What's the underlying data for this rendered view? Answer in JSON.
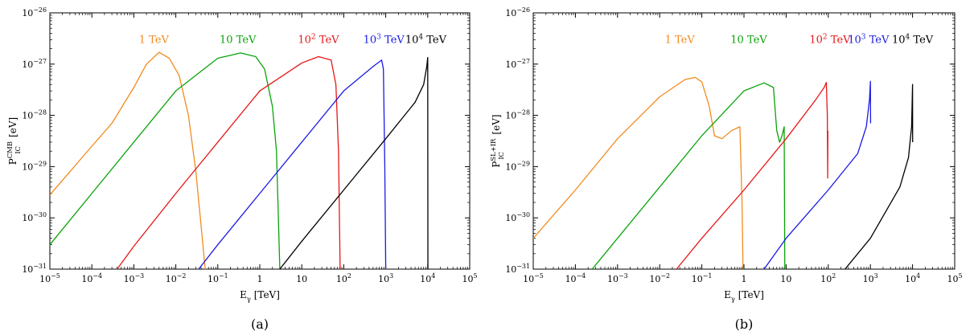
{
  "chart_data": [
    {
      "type": "line",
      "panel_label": "(a)",
      "xlabel": "E_γ [TeV]",
      "ylabel": "P_IC^CMB [eV]",
      "x_scale": "log",
      "y_scale": "log",
      "xlim": [
        1e-05,
        100000.0
      ],
      "ylim": [
        1e-31,
        1e-26
      ],
      "x_ticks": [
        "10^-5",
        "10^-4",
        "10^-3",
        "10^-2",
        "10^-1",
        "1",
        "10",
        "10^2",
        "10^3",
        "10^4",
        "10^5"
      ],
      "y_ticks": [
        "10^-31",
        "10^-30",
        "10^-29",
        "10^-28",
        "10^-27",
        "10^-26"
      ],
      "legend_placement": "top, labels above curve peaks",
      "series": [
        {
          "name": "1 TeV",
          "color": "#f28a1e",
          "label_at": [
            0.003,
            2.6e-27
          ],
          "points": [
            [
              1e-05,
              2.8e-30
            ],
            [
              0.0001,
              2.5e-29
            ],
            [
              0.0003,
              7e-29
            ],
            [
              0.001,
              3.5e-28
            ],
            [
              0.002,
              1e-27
            ],
            [
              0.004,
              1.7e-27
            ],
            [
              0.007,
              1.3e-27
            ],
            [
              0.012,
              6e-28
            ],
            [
              0.02,
              1e-28
            ],
            [
              0.03,
              8e-30
            ],
            [
              0.04,
              7e-31
            ],
            [
              0.05,
              1e-31
            ]
          ]
        },
        {
          "name": "10 TeV",
          "color": "#0aa30a",
          "label_at": [
            0.3,
            2.6e-27
          ],
          "points": [
            [
              1e-05,
              3e-31
            ],
            [
              0.0001,
              3e-30
            ],
            [
              0.001,
              3e-29
            ],
            [
              0.01,
              3e-28
            ],
            [
              0.1,
              1.3e-27
            ],
            [
              0.35,
              1.65e-27
            ],
            [
              0.8,
              1.4e-27
            ],
            [
              1.3,
              8e-28
            ],
            [
              2,
              1.5e-28
            ],
            [
              2.5,
              2e-29
            ],
            [
              3,
              1e-31
            ]
          ]
        },
        {
          "name": "10^2 TeV",
          "color": "#e61717",
          "label_at": [
            25,
            2.6e-27
          ],
          "points": [
            [
              0.0004,
              1e-31
            ],
            [
              0.001,
              2.8e-31
            ],
            [
              0.01,
              3e-30
            ],
            [
              0.1,
              3e-29
            ],
            [
              1,
              3e-28
            ],
            [
              10,
              1.05e-27
            ],
            [
              25,
              1.4e-27
            ],
            [
              50,
              1.2e-27
            ],
            [
              65,
              4e-28
            ],
            [
              75,
              2e-29
            ],
            [
              82,
              1e-31
            ]
          ]
        },
        {
          "name": "10^3 TeV",
          "color": "#1a1ae6",
          "label_at": [
            900,
            2.6e-27
          ],
          "points": [
            [
              0.035,
              1e-31
            ],
            [
              0.1,
              3e-31
            ],
            [
              1,
              3e-30
            ],
            [
              10,
              3e-29
            ],
            [
              100,
              3e-28
            ],
            [
              500,
              9e-28
            ],
            [
              800,
              1.2e-27
            ],
            [
              880,
              8e-28
            ],
            [
              950,
              1e-29
            ],
            [
              1000,
              1e-31
            ]
          ]
        },
        {
          "name": "10^4 TeV",
          "color": "#000000",
          "label_at": [
            9000,
            2.6e-27
          ],
          "points": [
            [
              3,
              1e-31
            ],
            [
              10,
              3.5e-31
            ],
            [
              100,
              3.5e-30
            ],
            [
              1000,
              3.5e-29
            ],
            [
              5000,
              1.8e-28
            ],
            [
              8000,
              4e-28
            ],
            [
              9500,
              9e-28
            ],
            [
              10000,
              1.35e-27
            ],
            [
              10100,
              1e-31
            ]
          ]
        }
      ]
    },
    {
      "type": "line",
      "panel_label": "(b)",
      "xlabel": "E_γ [TeV]",
      "ylabel": "P_IC^SL+IR [eV]",
      "x_scale": "log",
      "y_scale": "log",
      "xlim": [
        1e-05,
        100000.0
      ],
      "ylim": [
        1e-31,
        1e-26
      ],
      "x_ticks": [
        "10^-5",
        "10^-4",
        "10^-3",
        "10^-2",
        "10^-1",
        "1",
        "10",
        "10^2",
        "10^3",
        "10^4",
        "10^5"
      ],
      "y_ticks": [
        "10^-31",
        "10^-30",
        "10^-29",
        "10^-28",
        "10^-27",
        "10^-26"
      ],
      "legend_placement": "top-right",
      "series": [
        {
          "name": "1 TeV",
          "color": "#f28a1e",
          "label_at": [
            0.03,
            2.6e-27
          ],
          "points": [
            [
              1e-05,
              4e-31
            ],
            [
              0.0001,
              3.5e-30
            ],
            [
              0.001,
              3.5e-29
            ],
            [
              0.01,
              2.3e-28
            ],
            [
              0.04,
              5e-28
            ],
            [
              0.07,
              5.5e-28
            ],
            [
              0.1,
              4.5e-28
            ],
            [
              0.15,
              1.5e-28
            ],
            [
              0.2,
              4e-29
            ],
            [
              0.3,
              3.5e-29
            ],
            [
              0.5,
              5e-29
            ],
            [
              0.8,
              6e-29
            ],
            [
              0.9,
              2e-30
            ],
            [
              0.95,
              1e-31
            ]
          ]
        },
        {
          "name": "10 TeV",
          "color": "#0aa30a",
          "label_at": [
            1.3,
            2.6e-27
          ],
          "points": [
            [
              0.00025,
              1e-31
            ],
            [
              0.001,
              4e-31
            ],
            [
              0.01,
              4e-30
            ],
            [
              0.1,
              4e-29
            ],
            [
              1,
              3e-28
            ],
            [
              3,
              4.3e-28
            ],
            [
              5,
              3.5e-28
            ],
            [
              6,
              5e-29
            ],
            [
              7,
              3e-29
            ],
            [
              8,
              4e-29
            ],
            [
              9,
              6e-29
            ],
            [
              9.3,
              1e-31
            ]
          ]
        },
        {
          "name": "10^2 TeV",
          "color": "#e61717",
          "label_at": [
            110,
            2.6e-27
          ],
          "points": [
            [
              0.025,
              1e-31
            ],
            [
              0.1,
              4e-31
            ],
            [
              1,
              3.5e-30
            ],
            [
              10,
              3.5e-29
            ],
            [
              50,
              2e-28
            ],
            [
              80,
              3.5e-28
            ],
            [
              90,
              4.4e-28
            ],
            [
              95,
              1e-28
            ],
            [
              97,
              6e-30
            ],
            [
              98,
              5e-29
            ]
          ]
        },
        {
          "name": "10^3 TeV",
          "color": "#1a1ae6",
          "label_at": [
            900,
            2.6e-27
          ],
          "points": [
            [
              3,
              1e-31
            ],
            [
              10,
              4e-31
            ],
            [
              100,
              3.5e-30
            ],
            [
              500,
              1.8e-29
            ],
            [
              800,
              6e-29
            ],
            [
              950,
              2e-28
            ],
            [
              1000,
              4.6e-28
            ],
            [
              1010,
              7e-29
            ]
          ]
        },
        {
          "name": "10^4 TeV",
          "color": "#000000",
          "label_at": [
            10000,
            2.6e-27
          ],
          "points": [
            [
              250,
              1e-31
            ],
            [
              1000,
              4e-31
            ],
            [
              5000,
              4e-30
            ],
            [
              8000,
              1.5e-29
            ],
            [
              9500,
              6e-29
            ],
            [
              10000,
              4e-28
            ],
            [
              10050,
              3e-29
            ]
          ]
        }
      ]
    }
  ]
}
